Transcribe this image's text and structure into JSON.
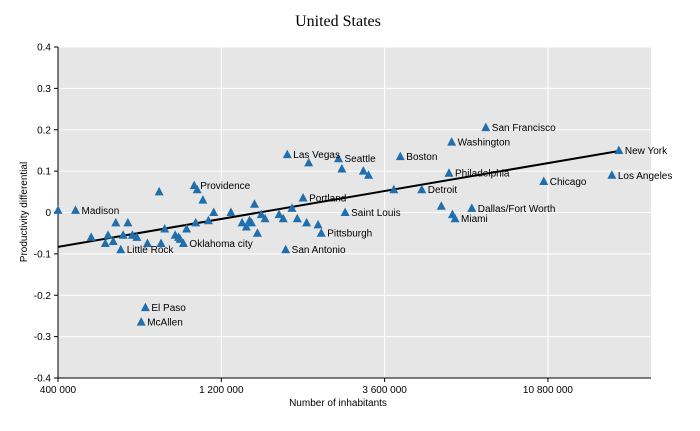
{
  "chart_data": {
    "type": "scatter",
    "title": "United States",
    "xlabel": "Number of inhabitants",
    "ylabel": "Productivity differential",
    "x_scale": "log",
    "xlim": [
      400000,
      21600000
    ],
    "ylim": [
      -0.4,
      0.4
    ],
    "x_ticks": [
      400000,
      1200000,
      3600000,
      10800000
    ],
    "x_tick_labels": [
      "400 000",
      "1 200 000",
      "3 600 000",
      "10 800 000"
    ],
    "y_ticks": [
      -0.4,
      -0.3,
      -0.2,
      -0.1,
      0,
      0.1,
      0.2,
      0.3,
      0.4
    ],
    "y_tick_labels": [
      "-0.4",
      "-0.3",
      "-0.2",
      "-0.1",
      "0",
      "0.1",
      "0.2",
      "0.3",
      "0.4"
    ],
    "grid": {
      "horizontal": true,
      "vertical": true
    },
    "colors": {
      "plot_background": "#e6e6e6",
      "gridline": "#ffffff",
      "marker": "#1f6fae",
      "trend_line": "#000000"
    },
    "trend_line": {
      "x": [
        400000,
        17500000
      ],
      "y": [
        -0.083,
        0.149
      ]
    },
    "points": [
      {
        "x": 400000,
        "y": 0.005,
        "label": ""
      },
      {
        "x": 450000,
        "y": 0.005,
        "label": "Madison"
      },
      {
        "x": 500000,
        "y": -0.06,
        "label": ""
      },
      {
        "x": 550000,
        "y": -0.075,
        "label": ""
      },
      {
        "x": 560000,
        "y": -0.055,
        "label": ""
      },
      {
        "x": 580000,
        "y": -0.07,
        "label": ""
      },
      {
        "x": 590000,
        "y": -0.025,
        "label": ""
      },
      {
        "x": 610000,
        "y": -0.09,
        "label": "Little Rock"
      },
      {
        "x": 620000,
        "y": -0.055,
        "label": ""
      },
      {
        "x": 640000,
        "y": -0.025,
        "label": ""
      },
      {
        "x": 660000,
        "y": -0.055,
        "label": ""
      },
      {
        "x": 680000,
        "y": -0.06,
        "label": ""
      },
      {
        "x": 700000,
        "y": -0.265,
        "label": "McAllen"
      },
      {
        "x": 720000,
        "y": -0.23,
        "label": "El Paso"
      },
      {
        "x": 730000,
        "y": -0.075,
        "label": ""
      },
      {
        "x": 790000,
        "y": 0.05,
        "label": ""
      },
      {
        "x": 800000,
        "y": -0.075,
        "label": ""
      },
      {
        "x": 820000,
        "y": -0.04,
        "label": ""
      },
      {
        "x": 880000,
        "y": -0.055,
        "label": ""
      },
      {
        "x": 900000,
        "y": -0.06,
        "label": ""
      },
      {
        "x": 910000,
        "y": -0.065,
        "label": ""
      },
      {
        "x": 930000,
        "y": -0.075,
        "label": "Oklahoma city"
      },
      {
        "x": 950000,
        "y": -0.04,
        "label": ""
      },
      {
        "x": 1000000,
        "y": 0.065,
        "label": "Providence"
      },
      {
        "x": 1010000,
        "y": -0.025,
        "label": ""
      },
      {
        "x": 1020000,
        "y": 0.055,
        "label": ""
      },
      {
        "x": 1060000,
        "y": 0.03,
        "label": ""
      },
      {
        "x": 1100000,
        "y": -0.02,
        "label": ""
      },
      {
        "x": 1140000,
        "y": 0.0,
        "label": ""
      },
      {
        "x": 1280000,
        "y": 0.0,
        "label": ""
      },
      {
        "x": 1380000,
        "y": -0.025,
        "label": ""
      },
      {
        "x": 1420000,
        "y": -0.035,
        "label": ""
      },
      {
        "x": 1450000,
        "y": -0.02,
        "label": ""
      },
      {
        "x": 1470000,
        "y": -0.025,
        "label": ""
      },
      {
        "x": 1500000,
        "y": 0.02,
        "label": ""
      },
      {
        "x": 1530000,
        "y": -0.05,
        "label": ""
      },
      {
        "x": 1570000,
        "y": -0.005,
        "label": ""
      },
      {
        "x": 1610000,
        "y": -0.015,
        "label": ""
      },
      {
        "x": 1770000,
        "y": -0.005,
        "label": ""
      },
      {
        "x": 1820000,
        "y": -0.015,
        "label": ""
      },
      {
        "x": 1850000,
        "y": -0.09,
        "label": "San Antonio"
      },
      {
        "x": 1870000,
        "y": 0.14,
        "label": "Las Vegas"
      },
      {
        "x": 1930000,
        "y": 0.01,
        "label": ""
      },
      {
        "x": 2000000,
        "y": -0.015,
        "label": ""
      },
      {
        "x": 2080000,
        "y": 0.035,
        "label": "Portland"
      },
      {
        "x": 2130000,
        "y": -0.025,
        "label": ""
      },
      {
        "x": 2160000,
        "y": 0.12,
        "label": ""
      },
      {
        "x": 2300000,
        "y": -0.03,
        "label": ""
      },
      {
        "x": 2350000,
        "y": -0.05,
        "label": "Pittsburgh"
      },
      {
        "x": 2640000,
        "y": 0.13,
        "label": "Seattle"
      },
      {
        "x": 2700000,
        "y": 0.105,
        "label": ""
      },
      {
        "x": 2760000,
        "y": 0.0,
        "label": "Saint Louis"
      },
      {
        "x": 3120000,
        "y": 0.1,
        "label": ""
      },
      {
        "x": 3230000,
        "y": 0.09,
        "label": ""
      },
      {
        "x": 3830000,
        "y": 0.055,
        "label": ""
      },
      {
        "x": 4000000,
        "y": 0.135,
        "label": "Boston"
      },
      {
        "x": 4620000,
        "y": 0.055,
        "label": "Detroit"
      },
      {
        "x": 5270000,
        "y": 0.015,
        "label": ""
      },
      {
        "x": 5550000,
        "y": 0.095,
        "label": "Philadelphia"
      },
      {
        "x": 5650000,
        "y": 0.17,
        "label": "Washington"
      },
      {
        "x": 5680000,
        "y": -0.005,
        "label": ""
      },
      {
        "x": 5780000,
        "y": -0.015,
        "label": "Miami"
      },
      {
        "x": 6470000,
        "y": 0.01,
        "label": "Dallas/Fort Worth"
      },
      {
        "x": 7110000,
        "y": 0.205,
        "label": "San Francisco"
      },
      {
        "x": 10500000,
        "y": 0.075,
        "label": "Chicago"
      },
      {
        "x": 16600000,
        "y": 0.09,
        "label": "Los Angeles"
      },
      {
        "x": 17400000,
        "y": 0.15,
        "label": "New York"
      }
    ]
  }
}
